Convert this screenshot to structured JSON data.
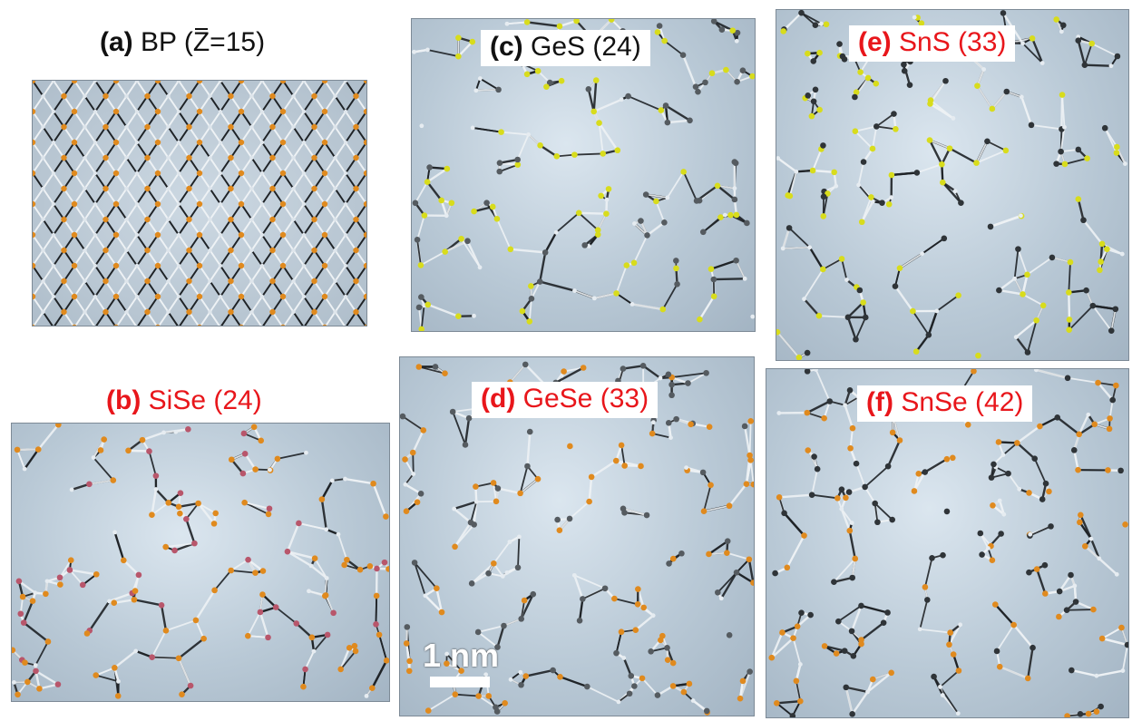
{
  "panels": [
    {
      "id": "a",
      "tag": "(a)",
      "name": "BP",
      "zlabel": "Z",
      "zvalue": "=15",
      "prefix": "(",
      "suffix": ")",
      "title_color": "black",
      "label_style": "above",
      "atom_colors": [
        "#e08a1e"
      ],
      "pattern": "lattice"
    },
    {
      "id": "b",
      "tag": "(b)",
      "name": "SiSe (24)",
      "title_color": "red",
      "label_style": "above",
      "atom_colors": [
        "#e08a1e",
        "#b8566b"
      ],
      "pattern": "amorphous"
    },
    {
      "id": "c",
      "tag": "(c)",
      "name": "GeS (24)",
      "title_color": "black",
      "label_style": "box",
      "atom_colors": [
        "#d8dc1c",
        "#555b60"
      ],
      "pattern": "amorphous"
    },
    {
      "id": "d",
      "tag": "(d)",
      "name": "GeSe (33)",
      "title_color": "red",
      "label_style": "box",
      "atom_colors": [
        "#e08a1e",
        "#555b60"
      ],
      "pattern": "amorphous"
    },
    {
      "id": "e",
      "tag": "(e)",
      "name": "SnS (33)",
      "title_color": "red",
      "label_style": "box",
      "atom_colors": [
        "#d8dc1c",
        "#2f3438"
      ],
      "pattern": "amorphous"
    },
    {
      "id": "f",
      "tag": "(f)",
      "name": "SnSe (42)",
      "title_color": "red",
      "label_style": "box",
      "atom_colors": [
        "#e08a1e",
        "#2f3438"
      ],
      "pattern": "amorphous"
    }
  ],
  "scalebar": {
    "label": "1 nm"
  },
  "colors": {
    "red_title": "#e8161b",
    "bond_dark": "#1e2226",
    "bond_light": "#eef2f5"
  }
}
